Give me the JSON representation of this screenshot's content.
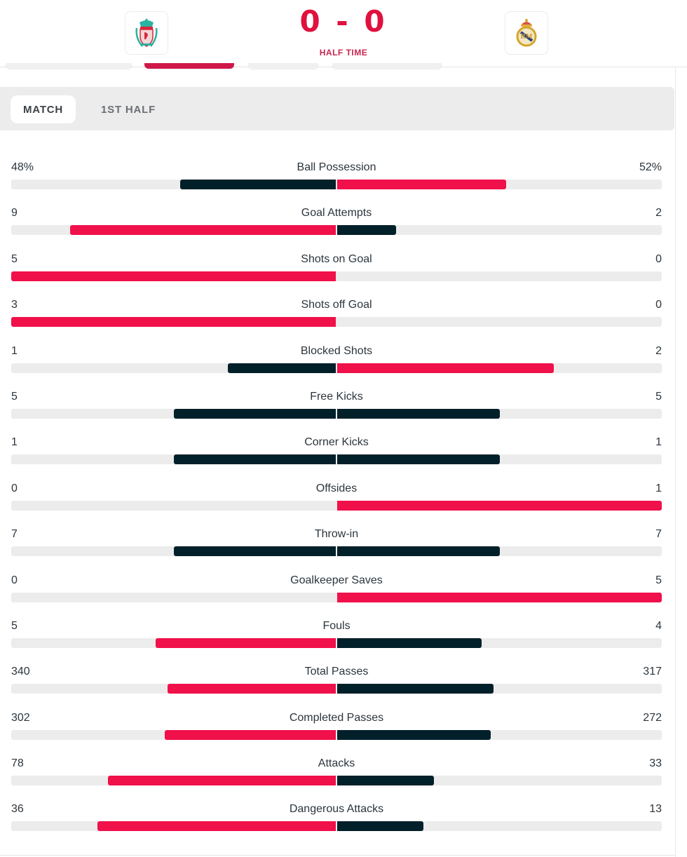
{
  "header": {
    "home_team": {
      "name": "Liverpool",
      "crest_icon": "liverpool-crest-icon"
    },
    "away_team": {
      "name": "Real Madrid",
      "crest_icon": "real-madrid-crest-icon"
    },
    "score": "0 - 0",
    "status": "HALF TIME",
    "subtabs_active_index": 1
  },
  "periods": {
    "items": [
      {
        "label": "MATCH",
        "active": true
      },
      {
        "label": "1ST HALF",
        "active": false
      }
    ]
  },
  "colors": {
    "leader": "#f0104a",
    "trailer": "#02202a",
    "track": "#ececec",
    "accent": "#e0103f"
  },
  "stats": [
    {
      "label": "Ball Possession",
      "home": "48%",
      "away": "52%",
      "home_val": 48,
      "away_val": 52
    },
    {
      "label": "Goal Attempts",
      "home": "9",
      "away": "2",
      "home_val": 9,
      "away_val": 2
    },
    {
      "label": "Shots on Goal",
      "home": "5",
      "away": "0",
      "home_val": 5,
      "away_val": 0
    },
    {
      "label": "Shots off Goal",
      "home": "3",
      "away": "0",
      "home_val": 3,
      "away_val": 0
    },
    {
      "label": "Blocked Shots",
      "home": "1",
      "away": "2",
      "home_val": 1,
      "away_val": 2
    },
    {
      "label": "Free Kicks",
      "home": "5",
      "away": "5",
      "home_val": 5,
      "away_val": 5
    },
    {
      "label": "Corner Kicks",
      "home": "1",
      "away": "1",
      "home_val": 1,
      "away_val": 1
    },
    {
      "label": "Offsides",
      "home": "0",
      "away": "1",
      "home_val": 0,
      "away_val": 1
    },
    {
      "label": "Throw-in",
      "home": "7",
      "away": "7",
      "home_val": 7,
      "away_val": 7
    },
    {
      "label": "Goalkeeper Saves",
      "home": "0",
      "away": "5",
      "home_val": 0,
      "away_val": 5
    },
    {
      "label": "Fouls",
      "home": "5",
      "away": "4",
      "home_val": 5,
      "away_val": 4
    },
    {
      "label": "Total Passes",
      "home": "340",
      "away": "317",
      "home_val": 340,
      "away_val": 317
    },
    {
      "label": "Completed Passes",
      "home": "302",
      "away": "272",
      "home_val": 302,
      "away_val": 272
    },
    {
      "label": "Attacks",
      "home": "78",
      "away": "33",
      "home_val": 78,
      "away_val": 33
    },
    {
      "label": "Dangerous Attacks",
      "home": "36",
      "away": "13",
      "home_val": 36,
      "away_val": 13
    }
  ]
}
